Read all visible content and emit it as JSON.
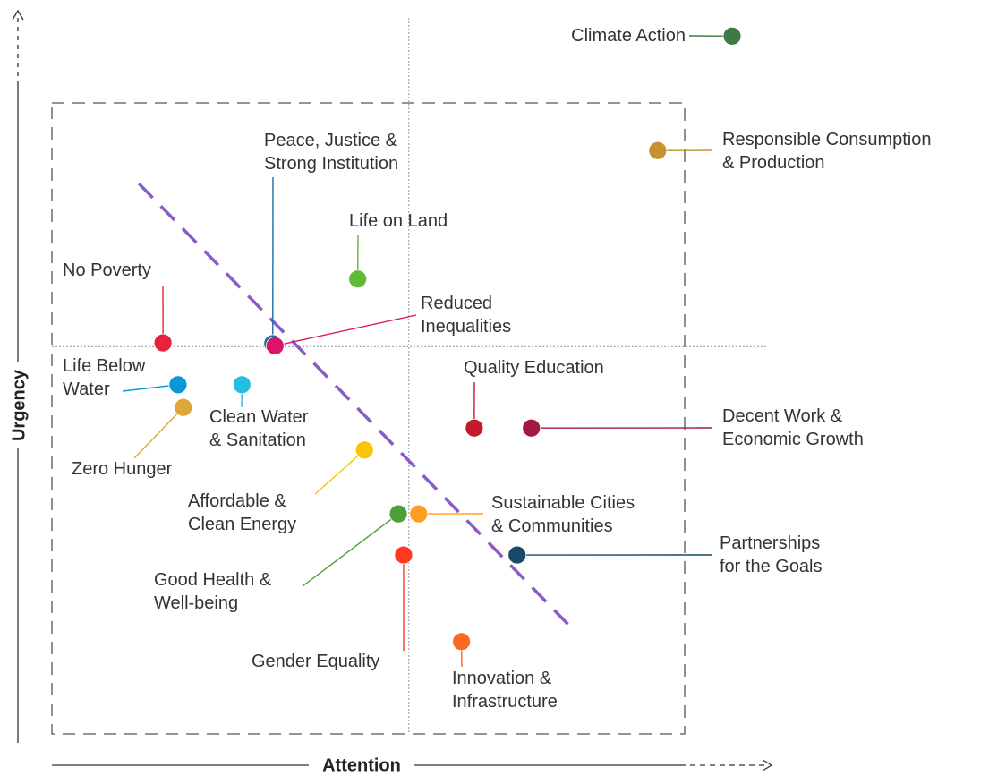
{
  "chart_data": {
    "type": "scatter",
    "x_label": "Attention",
    "y_label": "Urgency",
    "xlim": [
      0,
      100
    ],
    "ylim": [
      0,
      100
    ],
    "reference_lines": {
      "x": 52,
      "y": 54
    },
    "trend": {
      "x": [
        16.1,
        73.8
      ],
      "y": [
        76.2,
        15.5
      ],
      "color": "#8a5cc8"
    },
    "points": [
      {
        "name": "Climate Action",
        "x": 95.0,
        "y": 96.3,
        "color": "#3d7a45"
      },
      {
        "name": "Responsible Consumption\n& Production",
        "x": 85.1,
        "y": 80.7,
        "color": "#c4922e"
      },
      {
        "name": "Peace, Justice &\nStrong Institution",
        "x": 33.9,
        "y": 54.4,
        "color": "#1a6fa0"
      },
      {
        "name": "Life on Land",
        "x": 45.2,
        "y": 63.2,
        "color": "#5dbb35"
      },
      {
        "name": "No Poverty",
        "x": 19.3,
        "y": 54.5,
        "color": "#e5243b"
      },
      {
        "name": "Reduced\nInequalities",
        "x": 34.2,
        "y": 54.1,
        "color": "#dd1367"
      },
      {
        "name": "Life Below\nWater",
        "x": 21.3,
        "y": 48.8,
        "color": "#0a97d9"
      },
      {
        "name": "Clean Water\n& Sanitation",
        "x": 29.8,
        "y": 48.8,
        "color": "#26bde2"
      },
      {
        "name": "Zero Hunger",
        "x": 22.0,
        "y": 45.7,
        "color": "#dda63a"
      },
      {
        "name": "Quality Education",
        "x": 60.7,
        "y": 42.9,
        "color": "#c5192d"
      },
      {
        "name": "Decent Work &\nEconomic Growth",
        "x": 68.3,
        "y": 42.9,
        "color": "#a21942"
      },
      {
        "name": "Affordable &\nClean Energy",
        "x": 46.1,
        "y": 39.9,
        "color": "#fcc30b"
      },
      {
        "name": "Good Health &\nWell-being",
        "x": 50.6,
        "y": 31.2,
        "color": "#4c9f38"
      },
      {
        "name": "Sustainable Cities\n& Communities",
        "x": 53.3,
        "y": 31.2,
        "color": "#fd9d24"
      },
      {
        "name": "Partnerships\nfor the Goals",
        "x": 66.4,
        "y": 25.6,
        "color": "#19486a"
      },
      {
        "name": "Gender Equality",
        "x": 51.3,
        "y": 25.6,
        "color": "#ff3a21"
      },
      {
        "name": "Innovation &\nInfrastructure",
        "x": 59.0,
        "y": 13.8,
        "color": "#fd6925"
      }
    ]
  }
}
